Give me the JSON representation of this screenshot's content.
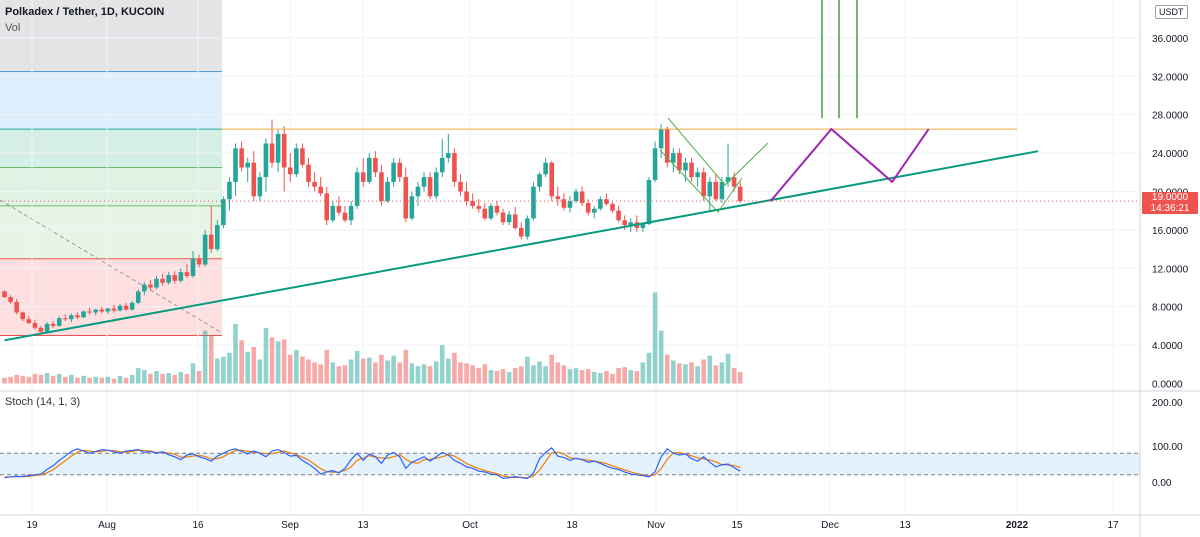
{
  "header": {
    "title": "Polkadex / Tether, 1D, KUCOIN",
    "volume_label": "Vol",
    "stoch_label": "Stoch (14, 1, 3)",
    "currency_badge": "USDT"
  },
  "current_price": {
    "price": "19.0000",
    "countdown": "14:36:21"
  },
  "colors": {
    "up": "#26a69a",
    "down": "#ef5350",
    "trendline": "#089981",
    "resistance": "#f2a93b",
    "projection": "#9c27b0",
    "stoch_k": "#2962ff",
    "stoch_d": "#f57c00"
  },
  "chart_data": {
    "type": "candlestick",
    "price_axis": {
      "ticks": [
        "36.0000",
        "32.0000",
        "28.0000",
        "24.0000",
        "20.0000",
        "16.0000",
        "12.0000",
        "8.0000",
        "4.0000",
        "0.0000"
      ],
      "range": [
        0,
        37.5
      ]
    },
    "stoch_axis": {
      "ticks": [
        "200.00",
        "100.00",
        "0.00"
      ]
    },
    "time_axis": {
      "ticks": [
        "19",
        "Aug",
        "16",
        "Sep",
        "13",
        "Oct",
        "18",
        "Nov",
        "15",
        "Dec",
        "13",
        "2022",
        "17"
      ]
    },
    "candles": [
      [
        9.6,
        9.7,
        8.9,
        9.0,
        0.6
      ],
      [
        9.0,
        9.2,
        8.3,
        8.5,
        0.7
      ],
      [
        8.5,
        8.8,
        7.2,
        7.4,
        0.9
      ],
      [
        7.4,
        7.5,
        6.5,
        6.7,
        0.8
      ],
      [
        6.7,
        7.0,
        6.2,
        6.3,
        0.7
      ],
      [
        6.3,
        6.6,
        5.6,
        5.8,
        1.0
      ],
      [
        5.8,
        6.0,
        5.2,
        5.4,
        0.9
      ],
      [
        5.4,
        6.4,
        5.3,
        6.2,
        1.1
      ],
      [
        6.2,
        6.5,
        5.8,
        6.0,
        0.8
      ],
      [
        6.0,
        7.0,
        5.9,
        6.8,
        1.0
      ],
      [
        6.8,
        7.2,
        6.5,
        6.7,
        0.7
      ],
      [
        6.7,
        7.3,
        6.4,
        7.1,
        0.9
      ],
      [
        7.1,
        7.4,
        6.7,
        6.9,
        0.6
      ],
      [
        6.9,
        7.6,
        6.8,
        7.5,
        0.8
      ],
      [
        7.5,
        7.9,
        7.2,
        7.4,
        0.6
      ],
      [
        7.4,
        7.8,
        7.1,
        7.7,
        0.7
      ],
      [
        7.7,
        8.0,
        7.3,
        7.5,
        0.6
      ],
      [
        7.5,
        7.9,
        7.2,
        7.8,
        0.7
      ],
      [
        7.8,
        8.2,
        7.4,
        7.6,
        0.5
      ],
      [
        7.6,
        8.3,
        7.5,
        8.1,
        0.8
      ],
      [
        8.1,
        8.4,
        7.6,
        7.7,
        0.6
      ],
      [
        7.7,
        8.6,
        7.6,
        8.4,
        0.9
      ],
      [
        8.4,
        9.8,
        8.3,
        9.6,
        1.6
      ],
      [
        9.6,
        10.6,
        9.2,
        10.3,
        1.4
      ],
      [
        10.3,
        10.8,
        9.7,
        10.0,
        1.0
      ],
      [
        10.0,
        11.2,
        9.8,
        10.9,
        1.3
      ],
      [
        10.9,
        11.4,
        10.2,
        10.5,
        1.0
      ],
      [
        10.5,
        11.6,
        10.3,
        11.3,
        1.1
      ],
      [
        11.3,
        11.7,
        10.4,
        10.7,
        0.9
      ],
      [
        10.7,
        12.0,
        10.5,
        11.6,
        1.2
      ],
      [
        11.6,
        12.4,
        11.0,
        11.2,
        1.0
      ],
      [
        11.2,
        13.8,
        11.0,
        13.0,
        2.1
      ],
      [
        13.0,
        13.4,
        12.1,
        12.4,
        1.3
      ],
      [
        12.4,
        16.0,
        12.2,
        15.5,
        5.5
      ],
      [
        15.5,
        18.5,
        13.6,
        14.0,
        5.0
      ],
      [
        14.0,
        17.0,
        13.8,
        16.5,
        2.6
      ],
      [
        16.5,
        19.5,
        16.2,
        19.2,
        2.8
      ],
      [
        19.2,
        21.5,
        18.0,
        21.0,
        3.2
      ],
      [
        21.0,
        25.0,
        19.5,
        24.5,
        6.2
      ],
      [
        24.5,
        25.2,
        22.1,
        22.5,
        4.5
      ],
      [
        22.5,
        23.5,
        21.0,
        23.0,
        3.3
      ],
      [
        23.0,
        24.2,
        19.0,
        19.5,
        3.8
      ],
      [
        19.5,
        22.0,
        19.0,
        21.5,
        2.5
      ],
      [
        21.5,
        25.5,
        20.0,
        25.0,
        5.8
      ],
      [
        25.0,
        27.5,
        22.5,
        23.0,
        4.8
      ],
      [
        23.0,
        26.5,
        22.0,
        26.0,
        4.4
      ],
      [
        26.0,
        26.8,
        20.0,
        22.5,
        4.6
      ],
      [
        22.5,
        24.0,
        21.0,
        21.8,
        3.0
      ],
      [
        21.8,
        25.0,
        21.5,
        24.5,
        3.5
      ],
      [
        24.5,
        25.0,
        22.5,
        22.8,
        2.8
      ],
      [
        22.8,
        23.5,
        20.5,
        21.0,
        2.5
      ],
      [
        21.0,
        22.0,
        20.0,
        20.5,
        2.2
      ],
      [
        20.5,
        21.5,
        19.5,
        19.8,
        2.0
      ],
      [
        19.8,
        20.5,
        16.5,
        17.0,
        3.5
      ],
      [
        17.0,
        19.0,
        16.8,
        18.5,
        2.2
      ],
      [
        18.5,
        19.5,
        17.5,
        17.8,
        1.8
      ],
      [
        17.8,
        18.5,
        16.8,
        17.0,
        1.9
      ],
      [
        17.0,
        19.0,
        16.5,
        18.5,
        2.5
      ],
      [
        18.5,
        22.5,
        18.2,
        22.0,
        3.4
      ],
      [
        22.0,
        23.5,
        20.5,
        21.0,
        2.6
      ],
      [
        21.0,
        24.0,
        20.8,
        23.5,
        2.7
      ],
      [
        23.5,
        24.2,
        21.5,
        22.0,
        2.2
      ],
      [
        22.0,
        22.8,
        18.5,
        19.0,
        3.0
      ],
      [
        19.0,
        21.5,
        18.8,
        21.0,
        2.4
      ],
      [
        21.0,
        23.5,
        20.5,
        23.0,
        2.9
      ],
      [
        23.0,
        23.5,
        21.0,
        21.5,
        2.2
      ],
      [
        21.5,
        22.5,
        16.8,
        17.2,
        3.5
      ],
      [
        17.2,
        20.0,
        17.0,
        19.5,
        2.1
      ],
      [
        19.5,
        21.0,
        18.5,
        20.5,
        1.8
      ],
      [
        20.5,
        22.0,
        20.0,
        21.5,
        2.0
      ],
      [
        21.5,
        22.0,
        19.2,
        19.5,
        1.8
      ],
      [
        19.5,
        22.5,
        19.2,
        22.0,
        2.3
      ],
      [
        22.0,
        25.5,
        21.5,
        23.5,
        4.0
      ],
      [
        23.5,
        26.0,
        23.0,
        24.0,
        2.6
      ],
      [
        24.0,
        24.5,
        20.5,
        21.0,
        3.2
      ],
      [
        21.0,
        21.8,
        19.5,
        20.0,
        2.2
      ],
      [
        20.0,
        21.0,
        18.5,
        19.0,
        2.1
      ],
      [
        19.0,
        19.8,
        18.2,
        18.5,
        1.9
      ],
      [
        18.5,
        19.2,
        17.8,
        18.2,
        1.6
      ],
      [
        18.2,
        18.8,
        17.0,
        17.2,
        2.0
      ],
      [
        17.2,
        18.8,
        17.0,
        18.5,
        1.4
      ],
      [
        18.5,
        19.0,
        17.5,
        17.8,
        1.3
      ],
      [
        17.8,
        18.2,
        16.5,
        16.8,
        1.5
      ],
      [
        16.8,
        18.0,
        16.5,
        17.6,
        1.2
      ],
      [
        17.6,
        18.4,
        16.0,
        16.2,
        1.6
      ],
      [
        16.2,
        16.8,
        15.0,
        15.3,
        1.8
      ],
      [
        15.3,
        17.5,
        15.0,
        17.2,
        2.8
      ],
      [
        17.2,
        21.0,
        17.0,
        20.5,
        1.9
      ],
      [
        20.5,
        22.0,
        20.0,
        21.8,
        2.3
      ],
      [
        21.8,
        23.5,
        21.5,
        23.0,
        1.8
      ],
      [
        23.0,
        23.2,
        19.0,
        19.5,
        3.0
      ],
      [
        19.5,
        20.5,
        18.5,
        19.2,
        2.2
      ],
      [
        19.2,
        19.8,
        18.0,
        18.3,
        1.9
      ],
      [
        18.3,
        19.5,
        17.8,
        19.0,
        1.5
      ],
      [
        19.0,
        20.3,
        18.8,
        20.0,
        1.6
      ],
      [
        20.0,
        20.5,
        18.5,
        18.8,
        1.4
      ],
      [
        18.8,
        19.2,
        17.5,
        17.8,
        1.5
      ],
      [
        17.8,
        18.5,
        17.2,
        18.2,
        1.2
      ],
      [
        18.2,
        19.5,
        18.0,
        19.2,
        1.1
      ],
      [
        19.2,
        19.8,
        18.5,
        18.7,
        1.3
      ],
      [
        18.7,
        18.9,
        17.8,
        18.0,
        1.0
      ],
      [
        18.0,
        18.5,
        16.8,
        17.0,
        1.6
      ],
      [
        17.0,
        17.5,
        16.0,
        16.5,
        1.7
      ],
      [
        16.5,
        17.2,
        15.8,
        16.8,
        1.4
      ],
      [
        16.8,
        17.5,
        15.8,
        16.2,
        1.3
      ],
      [
        16.2,
        16.8,
        15.8,
        16.6,
        2.2
      ],
      [
        16.6,
        21.5,
        16.5,
        21.2,
        3.2
      ],
      [
        21.2,
        25.2,
        21.0,
        24.5,
        9.5
      ],
      [
        24.5,
        27.0,
        23.5,
        26.5,
        5.5
      ],
      [
        26.5,
        26.8,
        22.5,
        23.0,
        3.0
      ],
      [
        23.0,
        24.5,
        22.0,
        24.0,
        2.4
      ],
      [
        24.0,
        24.5,
        21.8,
        22.2,
        2.1
      ],
      [
        22.2,
        23.5,
        21.0,
        23.0,
        2.0
      ],
      [
        23.0,
        23.5,
        21.0,
        21.5,
        2.2
      ],
      [
        21.5,
        22.5,
        20.5,
        22.0,
        1.8
      ],
      [
        22.0,
        22.5,
        19.0,
        19.5,
        2.5
      ],
      [
        19.5,
        21.5,
        18.0,
        21.0,
        2.9
      ],
      [
        21.0,
        21.8,
        19.0,
        19.2,
        1.9
      ],
      [
        19.2,
        21.5,
        18.8,
        21.0,
        2.2
      ],
      [
        21.0,
        25.0,
        20.5,
        21.5,
        3.1
      ],
      [
        21.5,
        22.0,
        20.0,
        20.5,
        1.6
      ],
      [
        20.5,
        21.0,
        18.8,
        19.0,
        1.2
      ]
    ],
    "stochastic": {
      "k": [
        12,
        14,
        16,
        15,
        18,
        20,
        22,
        35,
        45,
        60,
        72,
        85,
        92,
        86,
        80,
        85,
        90,
        88,
        84,
        80,
        86,
        88,
        90,
        82,
        85,
        80,
        84,
        76,
        70,
        62,
        75,
        78,
        70,
        65,
        58,
        72,
        80,
        88,
        92,
        85,
        78,
        86,
        80,
        70,
        86,
        90,
        82,
        72,
        74,
        60,
        50,
        38,
        22,
        28,
        32,
        25,
        38,
        62,
        80,
        60,
        78,
        70,
        52,
        75,
        82,
        70,
        38,
        55,
        62,
        70,
        58,
        70,
        82,
        75,
        60,
        52,
        42,
        38,
        30,
        28,
        22,
        20,
        10,
        12,
        15,
        12,
        10,
        25,
        65,
        82,
        95,
        72,
        68,
        60,
        66,
        62,
        55,
        58,
        52,
        44,
        38,
        35,
        28,
        22,
        20,
        18,
        14,
        28,
        70,
        92,
        80,
        75,
        78,
        65,
        58,
        70,
        55,
        42,
        48,
        50,
        40,
        30
      ],
      "d": [
        14,
        14,
        15,
        15,
        16,
        18,
        20,
        26,
        34,
        47,
        59,
        72,
        83,
        88,
        86,
        84,
        85,
        88,
        87,
        84,
        83,
        85,
        88,
        87,
        86,
        82,
        83,
        80,
        77,
        69,
        69,
        72,
        74,
        71,
        64,
        65,
        70,
        80,
        87,
        88,
        85,
        83,
        81,
        79,
        79,
        82,
        86,
        81,
        76,
        69,
        61,
        49,
        37,
        29,
        27,
        28,
        32,
        42,
        60,
        67,
        73,
        69,
        67,
        66,
        70,
        76,
        63,
        54,
        52,
        62,
        63,
        66,
        70,
        76,
        72,
        62,
        51,
        44,
        37,
        32,
        27,
        23,
        17,
        14,
        12,
        13,
        12,
        16,
        33,
        57,
        81,
        83,
        78,
        67,
        65,
        63,
        61,
        58,
        55,
        51,
        45,
        39,
        34,
        28,
        23,
        20,
        17,
        20,
        37,
        63,
        81,
        82,
        78,
        73,
        67,
        64,
        61,
        56,
        48,
        47,
        46,
        40
      ]
    },
    "annotations": {
      "resistance_level": 26.5,
      "trendline": {
        "from": [
          0,
          4.5
        ],
        "to": [
          170,
          24.2
        ]
      },
      "projection_path": [
        [
          126,
          19.0
        ],
        [
          136,
          26.5
        ],
        [
          146,
          21.0
        ],
        [
          152,
          26.5
        ]
      ],
      "fib_bands": [
        32.5,
        26.5,
        22.5,
        18.5,
        13.0,
        5.0
      ]
    }
  }
}
